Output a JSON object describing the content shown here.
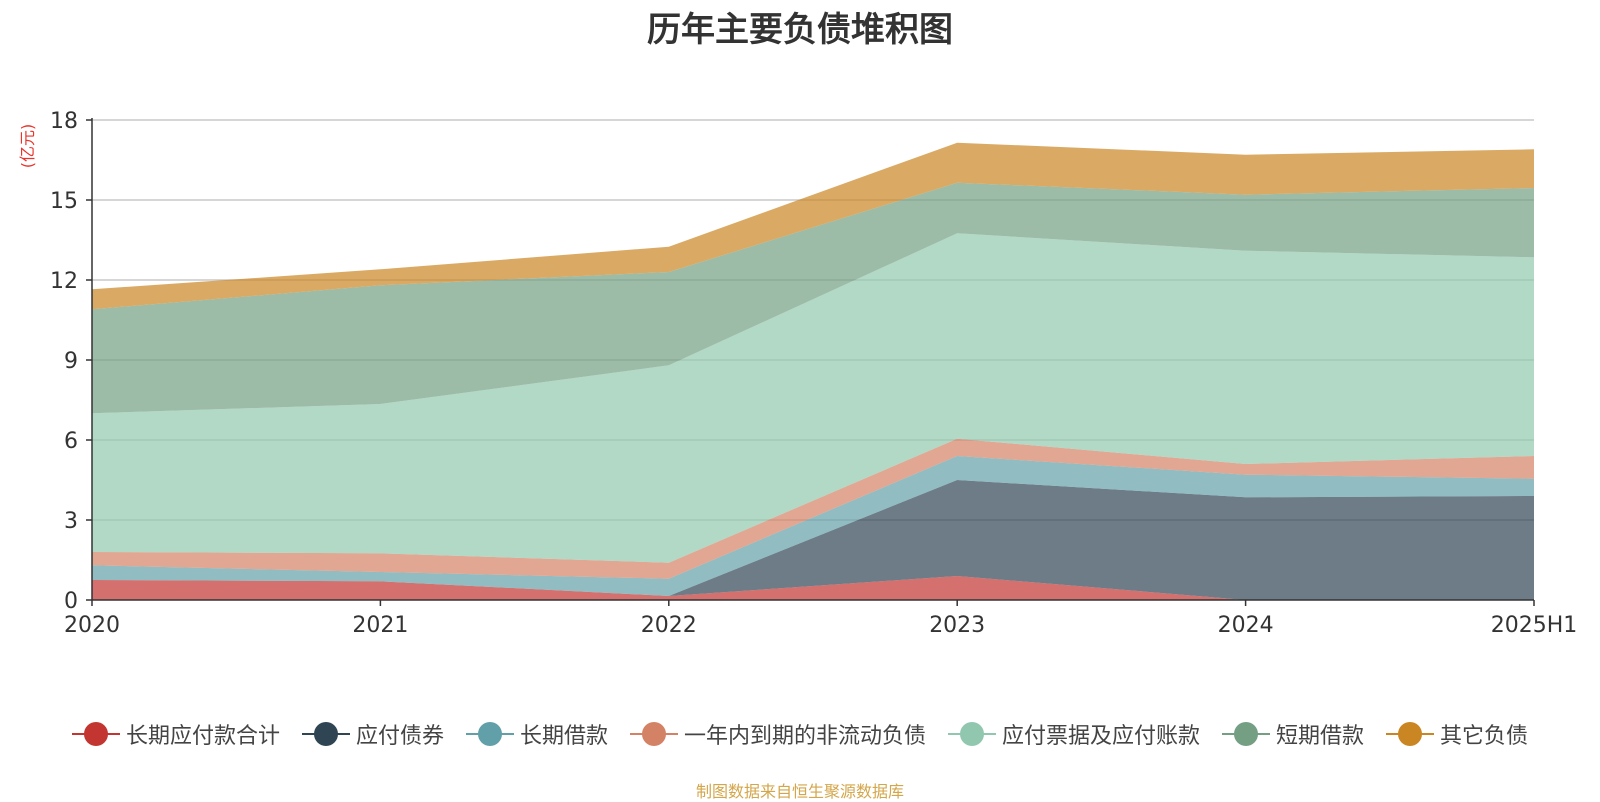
{
  "title": "历年主要负债堆积图",
  "source_note": "制图数据来自恒生聚源数据库",
  "chart_data": {
    "type": "area",
    "stacked": true,
    "title": "历年主要负债堆积图",
    "ylabel": "(亿元)",
    "xlabel": "",
    "categories": [
      "2020",
      "2021",
      "2022",
      "2023",
      "2024",
      "2025H1"
    ],
    "ylim": [
      0,
      18
    ],
    "yticks": [
      0,
      3,
      6,
      9,
      12,
      15,
      18
    ],
    "grid": true,
    "legend_position": "bottom",
    "series": [
      {
        "name": "长期应付款合计",
        "color": "#c23531",
        "values": [
          0.75,
          0.7,
          0.15,
          0.9,
          0.0,
          0.0
        ]
      },
      {
        "name": "应付债券",
        "color": "#2f4554",
        "values": [
          0.0,
          0.0,
          0.0,
          3.6,
          3.85,
          3.9
        ]
      },
      {
        "name": "长期借款",
        "color": "#61a0a8",
        "values": [
          0.55,
          0.35,
          0.65,
          0.9,
          0.85,
          0.65
        ]
      },
      {
        "name": "一年内到期的非流动负债",
        "color": "#d48265",
        "values": [
          0.5,
          0.7,
          0.6,
          0.65,
          0.4,
          0.85
        ]
      },
      {
        "name": "应付票据及应付账款",
        "color": "#91c7ae",
        "values": [
          5.2,
          5.6,
          7.4,
          7.7,
          8.0,
          7.45
        ]
      },
      {
        "name": "短期借款",
        "color": "#749f83",
        "values": [
          3.9,
          4.45,
          3.5,
          1.9,
          2.1,
          2.6
        ]
      },
      {
        "name": "其它负债",
        "color": "#ca8622",
        "values": [
          0.75,
          0.6,
          0.95,
          1.5,
          1.5,
          1.45
        ]
      }
    ]
  }
}
